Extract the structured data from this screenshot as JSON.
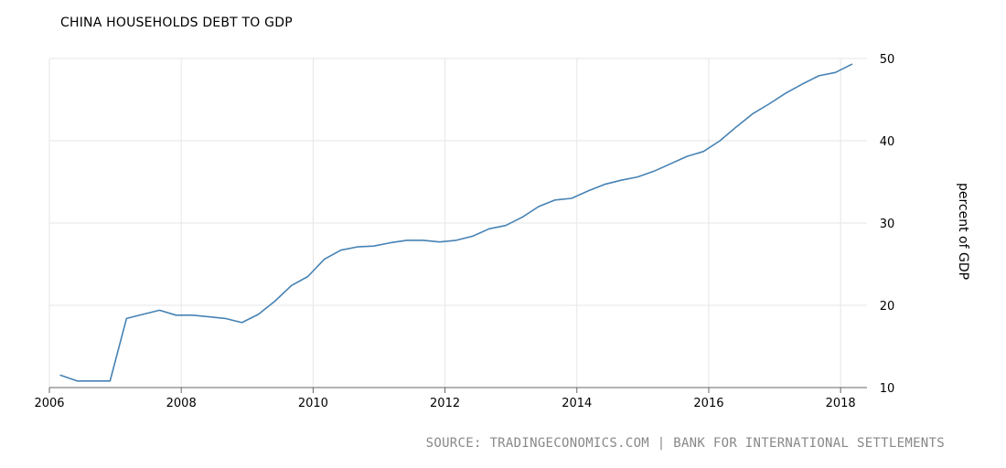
{
  "chart_data": {
    "type": "line",
    "title": "CHINA HOUSEHOLDS DEBT TO GDP",
    "ylabel": "percent of GDP",
    "xlabel": "",
    "source": "SOURCE: TRADINGECONOMICS.COM | BANK FOR INTERNATIONAL SETTLEMENTS",
    "xlim": [
      2006.0,
      2018.4
    ],
    "ylim": [
      10,
      50
    ],
    "x_ticks": [
      2006,
      2008,
      2010,
      2012,
      2014,
      2016,
      2018
    ],
    "y_ticks": [
      10,
      20,
      30,
      40,
      50
    ],
    "grid": true,
    "y_axis_position": "right",
    "line_color": "#4682b4",
    "series": [
      {
        "x": [
          2006.17,
          2006.42,
          2006.67,
          2006.92,
          2007.17,
          2007.42,
          2007.67,
          2007.92,
          2008.17,
          2008.42,
          2008.67,
          2008.92,
          2009.17,
          2009.42,
          2009.67,
          2009.92,
          2010.17,
          2010.42,
          2010.67,
          2010.92,
          2011.17,
          2011.42,
          2011.67,
          2011.92,
          2012.17,
          2012.42,
          2012.67,
          2012.92,
          2013.17,
          2013.42,
          2013.67,
          2013.92,
          2014.17,
          2014.42,
          2014.67,
          2014.92,
          2015.17,
          2015.42,
          2015.67,
          2015.92,
          2016.17,
          2016.42,
          2016.67,
          2016.92,
          2017.17,
          2017.42,
          2017.67,
          2017.92,
          2018.17
        ],
        "values": [
          11.5,
          10.8,
          10.8,
          10.8,
          18.4,
          18.9,
          19.4,
          18.8,
          18.8,
          18.6,
          18.4,
          17.9,
          18.9,
          20.5,
          22.4,
          23.5,
          25.6,
          26.7,
          27.1,
          27.2,
          27.6,
          27.9,
          27.9,
          27.7,
          27.9,
          28.4,
          29.3,
          29.7,
          30.7,
          32.0,
          32.8,
          33.0,
          33.9,
          34.7,
          35.2,
          35.6,
          36.3,
          37.2,
          38.1,
          38.7,
          40.0,
          41.7,
          43.3,
          44.5,
          45.8,
          46.9,
          47.9,
          48.3,
          49.3
        ]
      }
    ]
  }
}
